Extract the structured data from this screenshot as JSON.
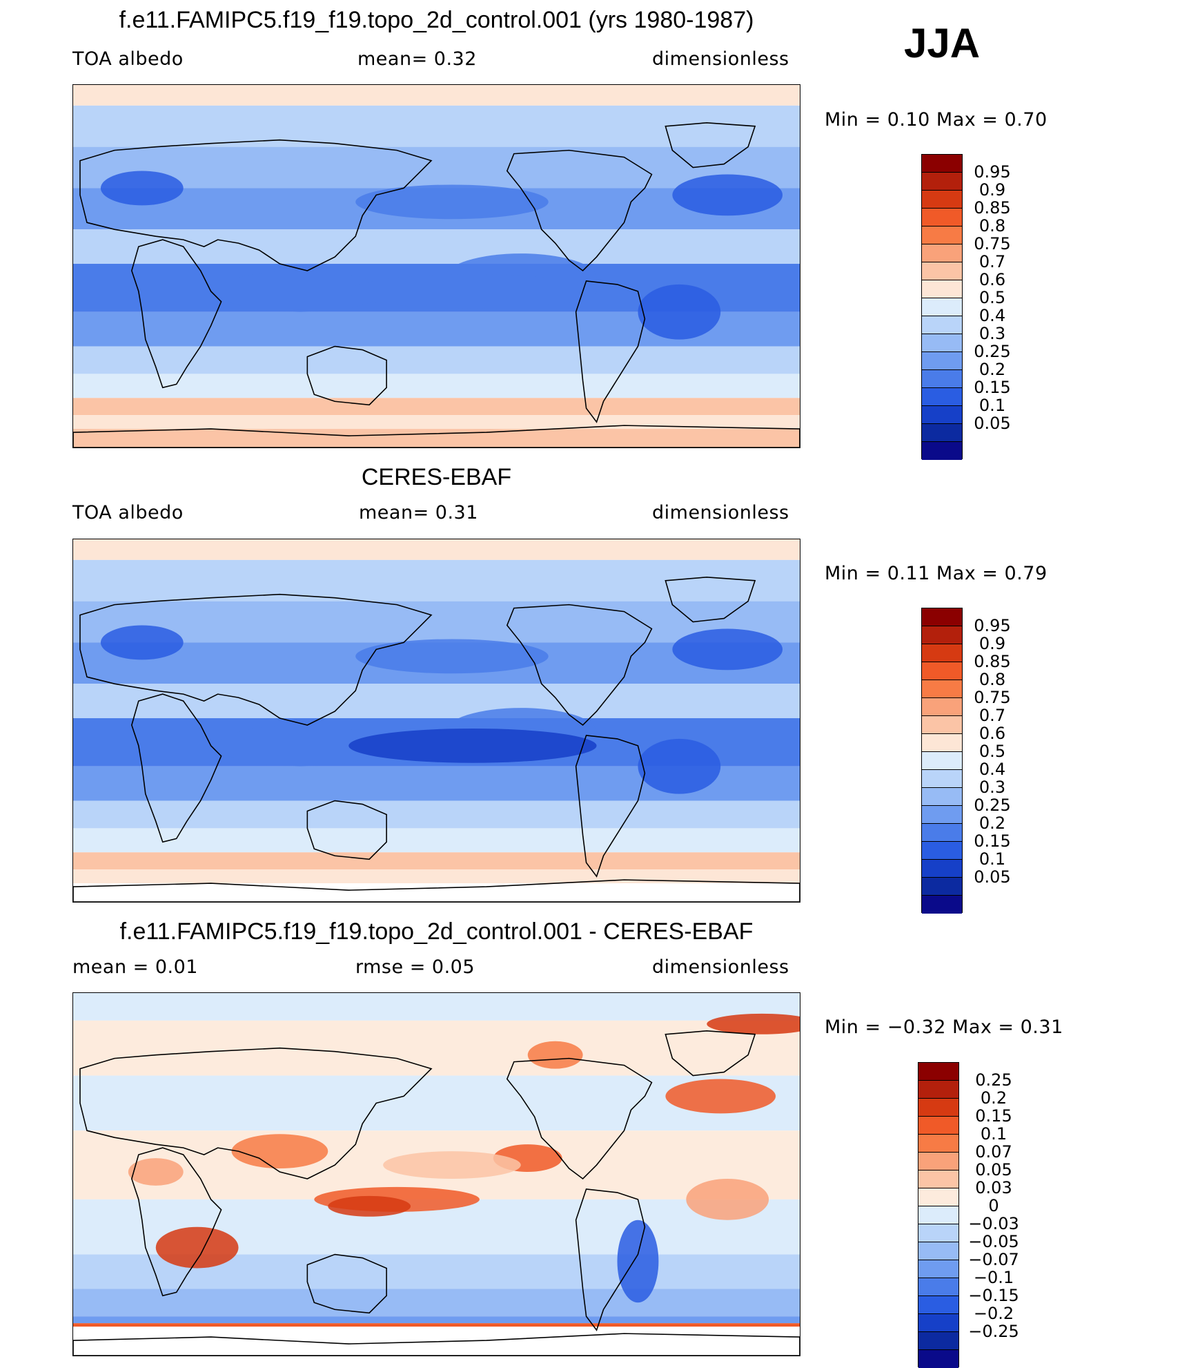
{
  "season": "JJA",
  "panels": [
    {
      "title": "f.e11.FAMIPC5.f19_f19.topo_2d_control.001 (yrs 1980-1987)",
      "left_label": "TOA  albedo",
      "center_label": "mean=     0.32",
      "right_label": "dimensionless",
      "min_label": "Min  =      0.10  Max  =      0.70",
      "colorbar": {
        "colors": [
          "#8b0000",
          "#b3200c",
          "#d63a12",
          "#f05a28",
          "#f77b45",
          "#f9a27a",
          "#fbc4a6",
          "#fde6d6",
          "#dcecfb",
          "#b9d4f9",
          "#97bbf5",
          "#6f9cf0",
          "#4a7ce9",
          "#2a5de2",
          "#1640c8",
          "#0c2aa0",
          "#0a0a8a"
        ],
        "labels": [
          "0.95",
          "0.9",
          "0.85",
          "0.8",
          "0.75",
          "0.7",
          "0.6",
          "0.5",
          "0.4",
          "0.3",
          "0.25",
          "0.2",
          "0.15",
          "0.1",
          "0.05"
        ]
      },
      "map": {
        "lon_range": [
          0,
          360
        ],
        "lat_range": [
          -90,
          90
        ],
        "variable": "TOA albedo",
        "style": "model"
      }
    },
    {
      "title": "CERES-EBAF",
      "left_label": "TOA  albedo",
      "center_label": "mean=     0.31",
      "right_label": "dimensionless",
      "min_label": "Min  =      0.11  Max  =      0.79",
      "colorbar": {
        "colors": [
          "#8b0000",
          "#b3200c",
          "#d63a12",
          "#f05a28",
          "#f77b45",
          "#f9a27a",
          "#fbc4a6",
          "#fde6d6",
          "#dcecfb",
          "#b9d4f9",
          "#97bbf5",
          "#6f9cf0",
          "#4a7ce9",
          "#2a5de2",
          "#1640c8",
          "#0c2aa0",
          "#0a0a8a"
        ],
        "labels": [
          "0.95",
          "0.9",
          "0.85",
          "0.8",
          "0.75",
          "0.7",
          "0.6",
          "0.5",
          "0.4",
          "0.3",
          "0.25",
          "0.2",
          "0.15",
          "0.1",
          "0.05"
        ]
      },
      "map": {
        "lon_range": [
          0,
          360
        ],
        "lat_range": [
          -90,
          90
        ],
        "variable": "TOA albedo",
        "style": "obs"
      }
    },
    {
      "title": "f.e11.FAMIPC5.f19_f19.topo_2d_control.001 - CERES-EBAF",
      "left_label": "mean  =      0.01",
      "center_label": "rmse  =      0.05",
      "right_label": "dimensionless",
      "min_label": "Min  =    −0.32  Max  =      0.31",
      "colorbar": {
        "colors": [
          "#8b0000",
          "#b3200c",
          "#d63a12",
          "#f05a28",
          "#f77b45",
          "#f9a27a",
          "#fbc4a6",
          "#fdebdd",
          "#dcecfb",
          "#b9d4f9",
          "#97bbf5",
          "#6f9cf0",
          "#4a7ce9",
          "#2a5de2",
          "#1640c8",
          "#0c2aa0",
          "#0a0a8a"
        ],
        "labels": [
          "0.25",
          "0.2",
          "0.15",
          "0.1",
          "0.07",
          "0.05",
          "0.03",
          "0",
          "−0.03",
          "−0.05",
          "−0.07",
          "−0.1",
          "−0.15",
          "−0.2",
          "−0.25"
        ]
      },
      "map": {
        "lon_range": [
          0,
          360
        ],
        "lat_range": [
          -90,
          90
        ],
        "variable": "TOA albedo difference",
        "style": "diff"
      }
    }
  ]
}
